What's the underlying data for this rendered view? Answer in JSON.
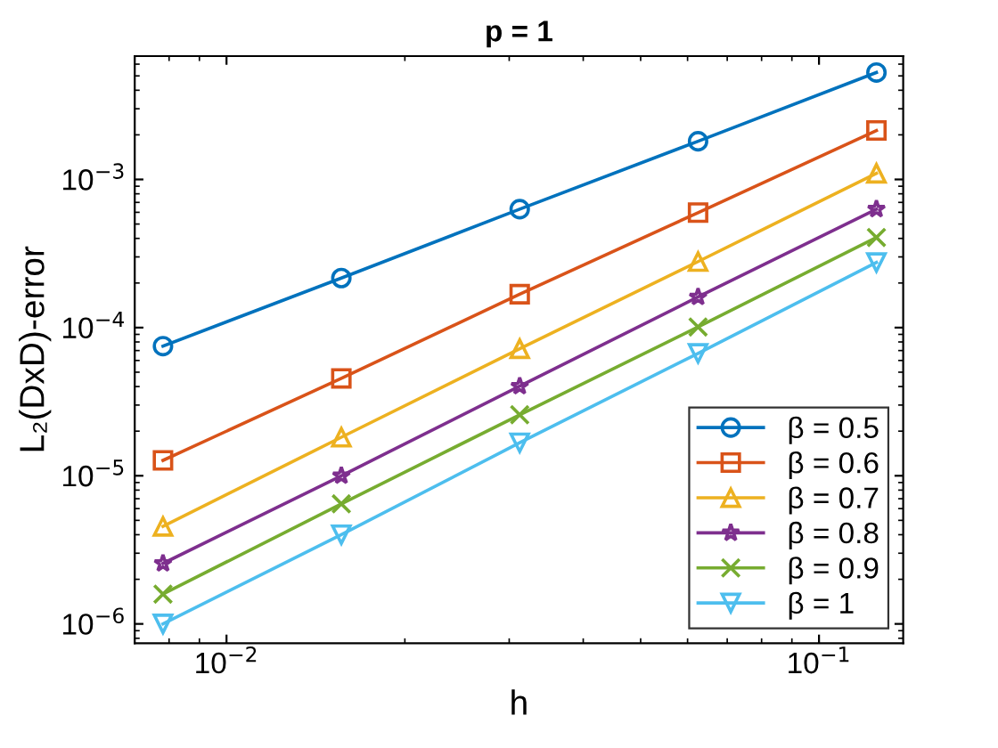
{
  "chart_data": {
    "type": "line",
    "title": "p = 1",
    "xlabel": "h",
    "ylabel": "L₂(DxD)-error",
    "log": "xy",
    "grid": false,
    "legend": "bottom right",
    "line_style": "solid",
    "x": [
      0.0078125,
      0.015625,
      0.03125,
      0.0625,
      0.125
    ],
    "xlim": [
      0.007,
      0.1387
    ],
    "ylim": [
      7.4e-07,
      0.0068
    ],
    "xticks": [
      {
        "value": 0.01,
        "label": "10$^{−2}$"
      },
      {
        "value": 0.1,
        "label": "10$^{−1}$"
      }
    ],
    "yticks": [
      {
        "value": 1e-06,
        "label": "10$^{−6}$"
      },
      {
        "value": 1e-05,
        "label": "10$^{−5}$"
      },
      {
        "value": 0.0001,
        "label": "10$^{−4}$"
      },
      {
        "value": 0.001,
        "label": "10$^{−3}$"
      }
    ],
    "series": [
      {
        "name": "β = 0.5",
        "color": "#0072bd",
        "marker": "circle",
        "values": [
          7.5e-05,
          0.000216,
          0.00063,
          0.00181,
          0.00527
        ]
      },
      {
        "name": "β = 0.6",
        "color": "#d95319",
        "marker": "square",
        "values": [
          1.27e-05,
          4.54e-05,
          0.000168,
          0.000597,
          0.00214
        ]
      },
      {
        "name": "β = 0.7",
        "color": "#edb120",
        "marker": "triangle",
        "values": [
          4.55e-06,
          1.82e-05,
          7.2e-05,
          0.000279,
          0.0011
        ]
      },
      {
        "name": "β = 0.8",
        "color": "#7e2f8e",
        "marker": "star",
        "values": [
          2.56e-06,
          1e-05,
          4.02e-05,
          0.000161,
          0.00063
        ]
      },
      {
        "name": "β = 0.9",
        "color": "#77ac30",
        "marker": "cross",
        "values": [
          1.59e-06,
          6.46e-06,
          2.58e-05,
          0.000101,
          0.000406
        ]
      },
      {
        "name": "β = 1",
        "color": "#4dbeee",
        "marker": "triangle_down",
        "values": [
          1e-06,
          4e-06,
          1.67e-05,
          6.7e-05,
          0.000275
        ]
      }
    ]
  }
}
